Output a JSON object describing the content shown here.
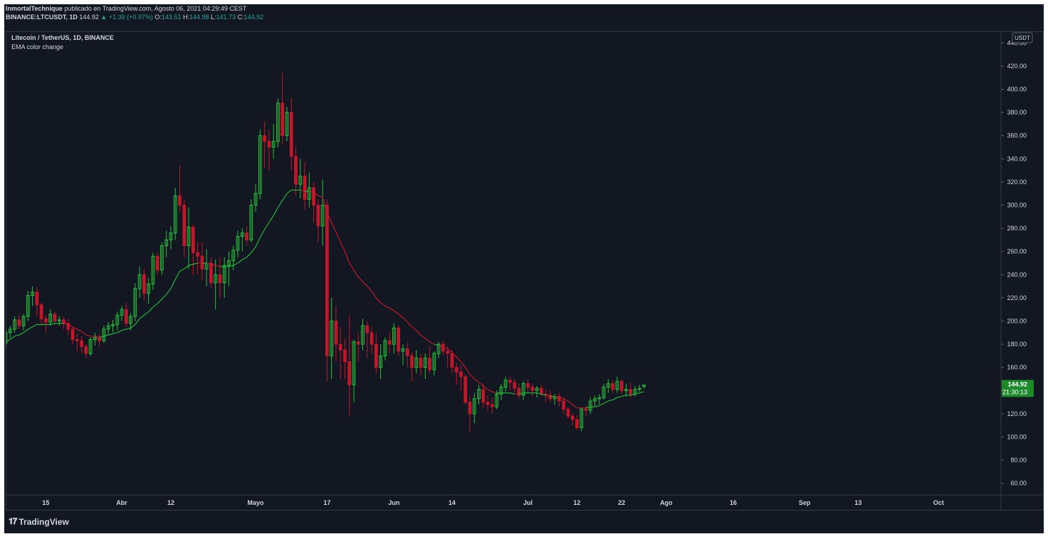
{
  "header": {
    "author": "InmortalTechnique",
    "published_text": " publicado en TradingView.com, Agosto 06, 2021 04:29:49 CEST",
    "symbol_line": "BINANCE:LTCUSDT, 1D",
    "last": "144.92",
    "change": "+1.39 (+0.97%)",
    "o_label": "O:",
    "o": "143.51",
    "h_label": "H:",
    "h": "144.98",
    "l_label": "L:",
    "l": "141.73",
    "c_label": "C:",
    "c": "144.92"
  },
  "legend": {
    "title": "Litecoin / TetherUS, 1D, BINANCE",
    "indicator": "EMA color change"
  },
  "price_axis": {
    "currency": "USDT",
    "last_price": "144.92",
    "countdown": "21:30:13"
  },
  "footer": {
    "logo_text": "TradingView"
  },
  "colors": {
    "background": "#131722",
    "up": "#26c23c",
    "down": "#c2162b",
    "ema_up": "#22b53a",
    "ema_down": "#c2162b",
    "grid": "#2a2e39",
    "text": "#d1d4dc"
  },
  "chart_data": {
    "type": "candlestick",
    "ylim": [
      50,
      450
    ],
    "y_ticks": [
      60,
      80,
      100,
      120,
      140,
      160,
      180,
      200,
      220,
      240,
      260,
      280,
      300,
      320,
      340,
      360,
      380,
      400,
      420,
      440
    ],
    "x_range": [
      "2021-03-06",
      "2021-10-15"
    ],
    "x_ticks": [
      {
        "label": "15",
        "date": "2021-03-15"
      },
      {
        "label": "Abr",
        "date": "2021-04-01"
      },
      {
        "label": "12",
        "date": "2021-04-12"
      },
      {
        "label": "Mayo",
        "date": "2021-05-01"
      },
      {
        "label": "17",
        "date": "2021-05-17"
      },
      {
        "label": "Jun",
        "date": "2021-06-01"
      },
      {
        "label": "14",
        "date": "2021-06-14"
      },
      {
        "label": "Jul",
        "date": "2021-07-01"
      },
      {
        "label": "12",
        "date": "2021-07-12"
      },
      {
        "label": "22",
        "date": "2021-07-22"
      },
      {
        "label": "Ago",
        "date": "2021-08-01"
      },
      {
        "label": "16",
        "date": "2021-08-16"
      },
      {
        "label": "Sep",
        "date": "2021-09-01"
      },
      {
        "label": "13",
        "date": "2021-09-13"
      },
      {
        "label": "Oct",
        "date": "2021-10-01"
      }
    ],
    "start_date": "2021-03-06",
    "ohlc": [
      [
        181,
        192,
        178,
        190
      ],
      [
        190,
        196,
        185,
        193
      ],
      [
        193,
        204,
        190,
        201
      ],
      [
        201,
        206,
        193,
        196
      ],
      [
        196,
        206,
        192,
        204
      ],
      [
        204,
        226,
        200,
        222
      ],
      [
        222,
        230,
        213,
        225
      ],
      [
        225,
        229,
        204,
        214
      ],
      [
        214,
        216,
        196,
        202
      ],
      [
        202,
        205,
        190,
        199
      ],
      [
        199,
        210,
        196,
        206
      ],
      [
        206,
        208,
        197,
        200
      ],
      [
        200,
        204,
        196,
        201
      ],
      [
        201,
        204,
        193,
        198
      ],
      [
        198,
        202,
        188,
        193
      ],
      [
        193,
        195,
        180,
        184
      ],
      [
        184,
        189,
        174,
        183
      ],
      [
        183,
        187,
        172,
        178
      ],
      [
        178,
        180,
        168,
        172
      ],
      [
        172,
        186,
        170,
        184
      ],
      [
        184,
        190,
        179,
        186
      ],
      [
        186,
        189,
        178,
        183
      ],
      [
        183,
        196,
        181,
        193
      ],
      [
        193,
        199,
        188,
        196
      ],
      [
        196,
        201,
        190,
        197
      ],
      [
        197,
        208,
        192,
        205
      ],
      [
        205,
        213,
        200,
        210
      ],
      [
        210,
        216,
        195,
        198
      ],
      [
        198,
        207,
        192,
        204
      ],
      [
        204,
        233,
        200,
        228
      ],
      [
        228,
        247,
        220,
        240
      ],
      [
        240,
        245,
        218,
        224
      ],
      [
        224,
        237,
        215,
        232
      ],
      [
        232,
        259,
        227,
        256
      ],
      [
        256,
        259,
        240,
        244
      ],
      [
        244,
        268,
        240,
        265
      ],
      [
        265,
        278,
        255,
        270
      ],
      [
        270,
        282,
        262,
        276
      ],
      [
        276,
        315,
        270,
        308
      ],
      [
        308,
        334,
        294,
        300
      ],
      [
        300,
        305,
        255,
        265
      ],
      [
        265,
        298,
        245,
        281
      ],
      [
        281,
        283,
        240,
        259
      ],
      [
        259,
        268,
        240,
        256
      ],
      [
        256,
        268,
        235,
        245
      ],
      [
        245,
        262,
        230,
        250
      ],
      [
        250,
        255,
        228,
        233
      ],
      [
        233,
        253,
        210,
        240
      ],
      [
        240,
        255,
        220,
        233
      ],
      [
        233,
        255,
        220,
        248
      ],
      [
        248,
        260,
        230,
        252
      ],
      [
        252,
        265,
        244,
        261
      ],
      [
        261,
        278,
        255,
        273
      ],
      [
        273,
        280,
        260,
        276
      ],
      [
        276,
        282,
        265,
        270
      ],
      [
        270,
        305,
        268,
        300
      ],
      [
        300,
        318,
        294,
        310
      ],
      [
        310,
        365,
        305,
        360
      ],
      [
        360,
        372,
        332,
        355
      ],
      [
        355,
        365,
        330,
        350
      ],
      [
        350,
        370,
        340,
        355
      ],
      [
        355,
        392,
        350,
        388
      ],
      [
        388,
        414,
        352,
        360
      ],
      [
        360,
        385,
        355,
        380
      ],
      [
        380,
        392,
        330,
        342
      ],
      [
        342,
        350,
        308,
        318
      ],
      [
        318,
        340,
        306,
        325
      ],
      [
        325,
        337,
        296,
        305
      ],
      [
        305,
        328,
        298,
        315
      ],
      [
        315,
        320,
        285,
        300
      ],
      [
        300,
        305,
        268,
        282
      ],
      [
        282,
        322,
        265,
        300
      ],
      [
        300,
        305,
        148,
        170
      ],
      [
        170,
        220,
        150,
        200
      ],
      [
        200,
        213,
        165,
        180
      ],
      [
        180,
        195,
        150,
        175
      ],
      [
        175,
        185,
        150,
        165
      ],
      [
        165,
        205,
        118,
        145
      ],
      [
        145,
        184,
        130,
        182
      ],
      [
        182,
        190,
        165,
        180
      ],
      [
        180,
        202,
        175,
        196
      ],
      [
        196,
        200,
        168,
        190
      ],
      [
        190,
        195,
        172,
        180
      ],
      [
        180,
        190,
        155,
        160
      ],
      [
        160,
        180,
        150,
        170
      ],
      [
        170,
        186,
        166,
        183
      ],
      [
        183,
        190,
        172,
        180
      ],
      [
        180,
        198,
        172,
        194
      ],
      [
        194,
        196,
        170,
        174
      ],
      [
        174,
        180,
        162,
        176
      ],
      [
        176,
        181,
        160,
        170
      ],
      [
        170,
        173,
        148,
        160
      ],
      [
        160,
        175,
        155,
        168
      ],
      [
        168,
        172,
        152,
        160
      ],
      [
        160,
        172,
        150,
        168
      ],
      [
        168,
        178,
        155,
        158
      ],
      [
        158,
        174,
        153,
        172
      ],
      [
        172,
        182,
        168,
        180
      ],
      [
        180,
        183,
        170,
        174
      ],
      [
        174,
        178,
        160,
        172
      ],
      [
        172,
        175,
        155,
        160
      ],
      [
        160,
        164,
        145,
        156
      ],
      [
        156,
        162,
        140,
        152
      ],
      [
        152,
        154,
        128,
        130
      ],
      [
        130,
        135,
        104,
        120
      ],
      [
        120,
        138,
        112,
        133
      ],
      [
        133,
        145,
        128,
        141
      ],
      [
        141,
        146,
        125,
        130
      ],
      [
        130,
        136,
        122,
        128
      ],
      [
        128,
        134,
        120,
        126
      ],
      [
        126,
        140,
        124,
        137
      ],
      [
        137,
        146,
        132,
        143
      ],
      [
        143,
        152,
        139,
        149
      ],
      [
        149,
        152,
        140,
        147
      ],
      [
        147,
        150,
        138,
        142
      ],
      [
        142,
        146,
        133,
        136
      ],
      [
        136,
        148,
        132,
        146
      ],
      [
        146,
        150,
        138,
        143
      ],
      [
        143,
        146,
        135,
        140
      ],
      [
        140,
        144,
        134,
        142
      ],
      [
        142,
        145,
        135,
        137
      ],
      [
        137,
        141,
        130,
        136
      ],
      [
        136,
        140,
        130,
        133
      ],
      [
        133,
        137,
        128,
        135
      ],
      [
        135,
        138,
        126,
        131
      ],
      [
        131,
        134,
        120,
        124
      ],
      [
        124,
        126,
        116,
        118
      ],
      [
        118,
        121,
        110,
        115
      ],
      [
        115,
        119,
        106,
        108
      ],
      [
        108,
        125,
        105,
        124
      ],
      [
        124,
        127,
        118,
        123
      ],
      [
        123,
        134,
        120,
        131
      ],
      [
        131,
        136,
        127,
        133
      ],
      [
        133,
        137,
        128,
        134
      ],
      [
        134,
        146,
        132,
        143
      ],
      [
        143,
        150,
        138,
        146
      ],
      [
        146,
        149,
        138,
        141
      ],
      [
        141,
        152,
        138,
        148
      ],
      [
        148,
        150,
        137,
        140
      ],
      [
        140,
        146,
        135,
        141
      ],
      [
        141,
        147,
        134,
        137
      ],
      [
        137,
        144,
        135,
        141
      ],
      [
        141,
        145,
        139,
        142
      ],
      [
        143.51,
        144.98,
        141.73,
        144.92
      ]
    ],
    "ema": [
      182,
      184,
      187,
      188,
      190,
      193,
      195,
      197,
      197,
      197,
      197,
      198,
      198,
      198,
      197,
      195,
      193,
      191,
      188,
      187,
      187,
      186,
      187,
      188,
      189,
      190,
      192,
      193,
      194,
      197,
      202,
      205,
      208,
      212,
      215,
      219,
      223,
      228,
      236,
      243,
      245,
      248,
      249,
      250,
      250,
      250,
      249,
      248,
      247,
      247,
      247,
      248,
      250,
      253,
      255,
      259,
      264,
      272,
      279,
      285,
      291,
      298,
      304,
      310,
      313,
      313,
      313,
      312,
      312,
      311,
      308,
      307,
      294,
      285,
      277,
      268,
      260,
      250,
      244,
      238,
      234,
      230,
      226,
      220,
      216,
      213,
      211,
      209,
      206,
      203,
      199,
      195,
      192,
      188,
      185,
      182,
      180,
      179,
      178,
      176,
      173,
      169,
      165,
      160,
      154,
      150,
      147,
      144,
      141,
      139,
      138,
      138,
      138,
      138,
      137,
      137,
      138,
      138,
      138,
      138,
      137,
      136,
      135,
      135,
      134,
      133,
      131,
      128,
      125,
      125,
      125,
      126,
      126,
      127,
      129,
      131,
      132,
      134,
      135,
      136,
      136,
      137,
      138,
      139
    ]
  }
}
